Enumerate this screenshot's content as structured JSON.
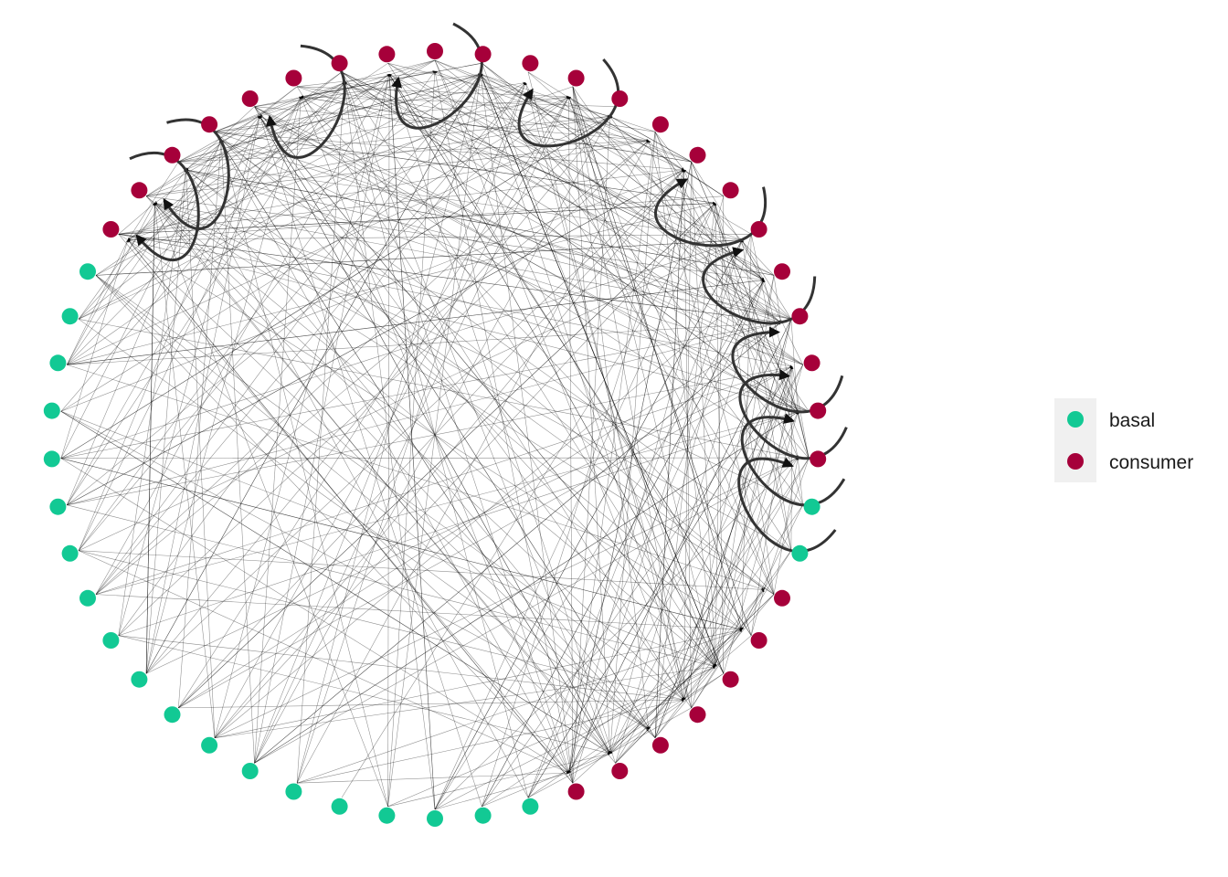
{
  "colors": {
    "basal": "#12c994",
    "consumer": "#a6003a",
    "edge": "#000000",
    "self_loop": "#333333"
  },
  "legend": {
    "items": [
      {
        "key": "basal",
        "label": "basal"
      },
      {
        "key": "consumer",
        "label": "consumer"
      }
    ]
  },
  "network": {
    "layout": "circle",
    "node_count": 50,
    "node_types": [
      "basal",
      "basal",
      "basal",
      "consumer",
      "consumer",
      "consumer",
      "consumer",
      "consumer",
      "consumer",
      "consumer",
      "basal",
      "basal",
      "consumer",
      "consumer",
      "consumer",
      "consumer",
      "consumer",
      "consumer",
      "consumer",
      "consumer",
      "consumer",
      "consumer",
      "consumer",
      "consumer",
      "consumer",
      "consumer",
      "consumer",
      "consumer",
      "consumer",
      "consumer",
      "consumer",
      "consumer",
      "consumer",
      "consumer",
      "basal",
      "basal",
      "basal",
      "basal",
      "basal",
      "basal",
      "basal",
      "basal",
      "basal",
      "basal",
      "basal",
      "basal",
      "basal",
      "basal",
      "basal",
      "basal"
    ],
    "self_loop_nodes": [
      11,
      12,
      13,
      14,
      16,
      18,
      22,
      25,
      28,
      31,
      32
    ],
    "edge_seed": 7,
    "edge_count": 420
  }
}
